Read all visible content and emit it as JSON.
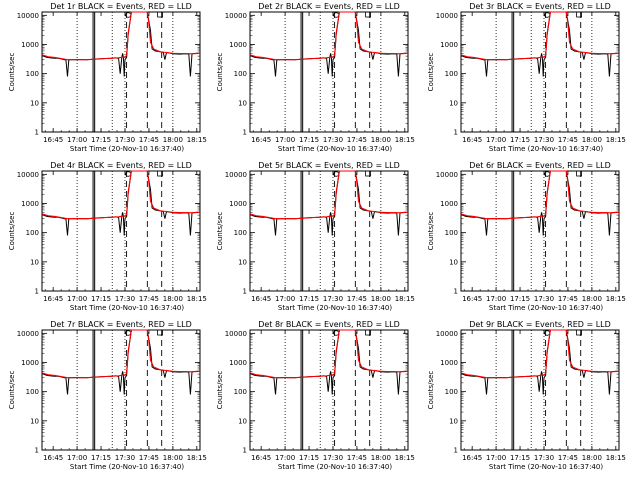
{
  "chart_data": [
    {
      "type": "line",
      "title": "Det 1r BLACK = Events, RED = LLD"
    },
    {
      "type": "line",
      "title": "Det 2r BLACK = Events, RED = LLD"
    },
    {
      "type": "line",
      "title": "Det 3r BLACK = Events, RED = LLD"
    },
    {
      "type": "line",
      "title": "Det 4r BLACK = Events, RED = LLD"
    },
    {
      "type": "line",
      "title": "Det 5r BLACK = Events, RED = LLD"
    },
    {
      "type": "line",
      "title": "Det 6r BLACK = Events, RED = LLD"
    },
    {
      "type": "line",
      "title": "Det 7r BLACK = Events, RED = LLD"
    },
    {
      "type": "line",
      "title": "Det 8r BLACK = Events, RED = LLD"
    },
    {
      "type": "line",
      "title": "Det 9r BLACK = Events, RED = LLD"
    }
  ],
  "shared": {
    "ylabel": "Counts/sec",
    "xlabel": "Start Time (20-Nov-10 16:37:40)",
    "x_ticks": [
      "16:45",
      "17:00",
      "17:15",
      "17:30",
      "17:45",
      "18:00",
      "18:15"
    ],
    "x_tick_minutes": [
      45,
      60,
      75,
      90,
      105,
      120,
      135
    ],
    "xlim_minutes": [
      38,
      137
    ],
    "y_ticks": [
      "1",
      "10",
      "100",
      "1000",
      "10000"
    ],
    "y_tick_values": [
      1,
      10,
      100,
      1000,
      10000
    ],
    "ylim": [
      1,
      13000
    ],
    "log_y": true,
    "dotted_lines_minutes": [
      60,
      82,
      90,
      120
    ],
    "dashed_lines_minutes": [
      91,
      104,
      113
    ],
    "solid_box_minutes": [
      70,
      71
    ],
    "markers": [
      {
        "symbol": "O",
        "minute": 92
      },
      {
        "symbol": "S",
        "minute": 112
      }
    ],
    "series": {
      "events_color": "#000000",
      "lld_color": "#ff0000",
      "events_points": [
        [
          38,
          420
        ],
        [
          41,
          360
        ],
        [
          44,
          345
        ],
        [
          46,
          340
        ],
        [
          48,
          335
        ],
        [
          50,
          320
        ],
        [
          52,
          300
        ],
        [
          53,
          300
        ],
        [
          54,
          80
        ],
        [
          54.8,
          300
        ],
        [
          58,
          300
        ],
        [
          62,
          305
        ],
        [
          66,
          300
        ],
        [
          70,
          310
        ],
        [
          73,
          320
        ],
        [
          78,
          330
        ],
        [
          82,
          340
        ],
        [
          84,
          350
        ],
        [
          86,
          330
        ],
        [
          87,
          100
        ],
        [
          88,
          360
        ],
        [
          88.5,
          500
        ],
        [
          89,
          360
        ],
        [
          89.5,
          80
        ],
        [
          90,
          300
        ],
        [
          91,
          360
        ],
        [
          92,
          2200
        ],
        [
          94,
          13000
        ],
        [
          104,
          13000
        ],
        [
          106,
          3000
        ],
        [
          107,
          700
        ],
        [
          109,
          600
        ],
        [
          112,
          560
        ],
        [
          114,
          530
        ],
        [
          115,
          300
        ],
        [
          116,
          530
        ],
        [
          120,
          480
        ],
        [
          124,
          470
        ],
        [
          128,
          480
        ],
        [
          130,
          470
        ],
        [
          131,
          80
        ],
        [
          132,
          480
        ],
        [
          135,
          500
        ],
        [
          137,
          500
        ]
      ],
      "lld_points": [
        [
          38,
          440
        ],
        [
          42,
          380
        ],
        [
          46,
          360
        ],
        [
          50,
          330
        ],
        [
          54,
          300
        ],
        [
          58,
          305
        ],
        [
          62,
          300
        ],
        [
          66,
          300
        ],
        [
          70,
          310
        ],
        [
          74,
          320
        ],
        [
          78,
          330
        ],
        [
          82,
          340
        ],
        [
          86,
          350
        ],
        [
          89,
          370
        ],
        [
          90,
          380
        ],
        [
          91,
          420
        ],
        [
          92,
          2500
        ],
        [
          94,
          13000
        ],
        [
          104,
          13000
        ],
        [
          105,
          5000
        ],
        [
          106,
          1200
        ],
        [
          108,
          700
        ],
        [
          112,
          560
        ],
        [
          116,
          530
        ],
        [
          120,
          500
        ],
        [
          124,
          490
        ],
        [
          128,
          490
        ],
        [
          132,
          480
        ],
        [
          137,
          500
        ]
      ]
    }
  }
}
